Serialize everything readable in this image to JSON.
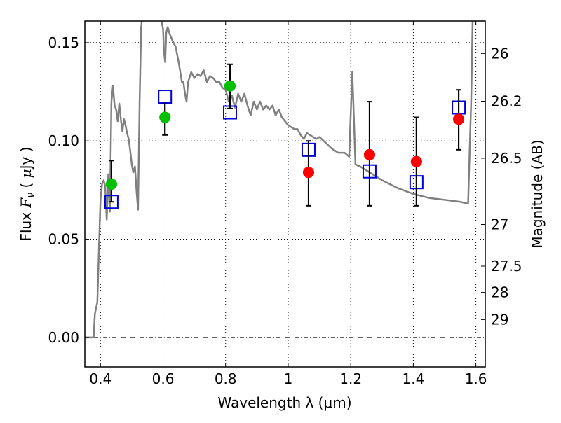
{
  "chart_data": {
    "type": "scatter",
    "title": "",
    "xlabel": "Wavelength  λ (μm)",
    "ylabel": "Flux  F_ν  ( μJy )",
    "ylabel_parts": {
      "pre": "Flux  ",
      "var": "F",
      "sub": "ν",
      "post": "  ( ",
      "mu": "μ",
      "unit": "Jy )"
    },
    "y2label": "Magnitude (AB)",
    "xlim": [
      0.35,
      1.63
    ],
    "ylim": [
      -0.015,
      0.161
    ],
    "grid": true,
    "xticks": [
      {
        "value": 0.4,
        "label": "0.4"
      },
      {
        "value": 0.6,
        "label": "0.6"
      },
      {
        "value": 0.8,
        "label": "0.8"
      },
      {
        "value": 1.0,
        "label": "1"
      },
      {
        "value": 1.2,
        "label": "1.2"
      },
      {
        "value": 1.4,
        "label": "1.4"
      },
      {
        "value": 1.6,
        "label": "1.6"
      }
    ],
    "yticks": [
      {
        "value": 0.0,
        "label": "0.00"
      },
      {
        "value": 0.05,
        "label": "0.05"
      },
      {
        "value": 0.1,
        "label": "0.10"
      },
      {
        "value": 0.15,
        "label": "0.15"
      }
    ],
    "y2ticks": [
      {
        "flux": 0.1445,
        "label": "26"
      },
      {
        "flux": 0.1202,
        "label": "26.2"
      },
      {
        "flux": 0.0912,
        "label": "26.5"
      },
      {
        "flux": 0.0575,
        "label": "27"
      },
      {
        "flux": 0.0363,
        "label": "27.5"
      },
      {
        "flux": 0.0229,
        "label": "28"
      },
      {
        "flux": 0.0091,
        "label": "29"
      }
    ],
    "zero_line": 0.0,
    "series": [
      {
        "name": "model-sed",
        "kind": "line",
        "color": "#808080",
        "x": [
          0.35,
          0.378,
          0.382,
          0.39,
          0.395,
          0.4,
          0.405,
          0.41,
          0.415,
          0.42,
          0.425,
          0.43,
          0.435,
          0.44,
          0.445,
          0.45,
          0.455,
          0.46,
          0.465,
          0.47,
          0.475,
          0.48,
          0.485,
          0.49,
          0.495,
          0.5,
          0.505,
          0.51,
          0.515,
          0.52,
          0.525,
          0.53,
          0.535,
          0.54,
          0.55,
          0.56,
          0.57,
          0.58,
          0.59,
          0.6,
          0.603,
          0.607,
          0.61,
          0.615,
          0.62,
          0.63,
          0.64,
          0.65,
          0.655,
          0.66,
          0.665,
          0.67,
          0.675,
          0.68,
          0.69,
          0.7,
          0.71,
          0.72,
          0.73,
          0.74,
          0.75,
          0.76,
          0.77,
          0.78,
          0.79,
          0.8,
          0.81,
          0.82,
          0.83,
          0.84,
          0.85,
          0.86,
          0.87,
          0.88,
          0.89,
          0.9,
          0.91,
          0.92,
          0.93,
          0.94,
          0.95,
          0.96,
          0.97,
          0.98,
          0.99,
          1.0,
          1.01,
          1.02,
          1.03,
          1.04,
          1.05,
          1.06,
          1.07,
          1.08,
          1.09,
          1.1,
          1.12,
          1.14,
          1.16,
          1.18,
          1.195,
          1.205,
          1.215,
          1.23,
          1.26,
          1.3,
          1.35,
          1.4,
          1.45,
          1.5,
          1.55,
          1.575,
          1.585,
          1.59,
          1.6
        ],
        "y": [
          0.0,
          0.0,
          0.012,
          0.018,
          0.045,
          0.07,
          0.078,
          0.08,
          0.077,
          0.06,
          0.083,
          0.064,
          0.12,
          0.128,
          0.118,
          0.116,
          0.11,
          0.119,
          0.111,
          0.105,
          0.111,
          0.108,
          0.104,
          0.101,
          0.095,
          0.088,
          0.084,
          0.087,
          0.075,
          0.065,
          0.12,
          0.158,
          0.165,
          0.165,
          0.165,
          0.165,
          0.165,
          0.165,
          0.165,
          0.157,
          0.145,
          0.14,
          0.155,
          0.158,
          0.155,
          0.151,
          0.148,
          0.14,
          0.135,
          0.13,
          0.13,
          0.124,
          0.12,
          0.13,
          0.135,
          0.132,
          0.134,
          0.133,
          0.136,
          0.13,
          0.133,
          0.132,
          0.13,
          0.13,
          0.127,
          0.126,
          0.12,
          0.123,
          0.117,
          0.124,
          0.12,
          0.124,
          0.118,
          0.113,
          0.12,
          0.116,
          0.12,
          0.116,
          0.118,
          0.116,
          0.118,
          0.113,
          0.116,
          0.112,
          0.11,
          0.108,
          0.107,
          0.106,
          0.106,
          0.103,
          0.101,
          0.104,
          0.103,
          0.102,
          0.101,
          0.102,
          0.099,
          0.096,
          0.094,
          0.094,
          0.092,
          0.135,
          0.088,
          0.087,
          0.084,
          0.08,
          0.076,
          0.073,
          0.071,
          0.07,
          0.069,
          0.068,
          0.12,
          0.165,
          0.165
        ]
      },
      {
        "name": "observed-hst-green",
        "kind": "points",
        "marker": "circle",
        "color": "#00c000",
        "x": [
          0.435,
          0.606,
          0.814
        ],
        "y": [
          0.078,
          0.112,
          0.128
        ],
        "yerr_low": [
          0.069,
          0.103,
          0.1165
        ],
        "yerr_high": [
          0.09,
          0.1195,
          0.139
        ]
      },
      {
        "name": "observed-red",
        "kind": "points",
        "marker": "circle",
        "color": "#ff0000",
        "x": [
          1.065,
          1.26,
          1.41,
          1.545
        ],
        "y": [
          0.084,
          0.093,
          0.0895,
          0.111
        ],
        "yerr_low": [
          0.067,
          0.067,
          0.067,
          0.0955
        ],
        "yerr_high": [
          0.1,
          0.12,
          0.112,
          0.126
        ]
      },
      {
        "name": "model-photometry",
        "kind": "points",
        "marker": "open-square",
        "color": "#0000dd",
        "x": [
          0.435,
          0.606,
          0.814,
          1.065,
          1.26,
          1.41,
          1.545
        ],
        "y": [
          0.069,
          0.1225,
          0.1145,
          0.0955,
          0.0845,
          0.079,
          0.117
        ]
      }
    ]
  }
}
